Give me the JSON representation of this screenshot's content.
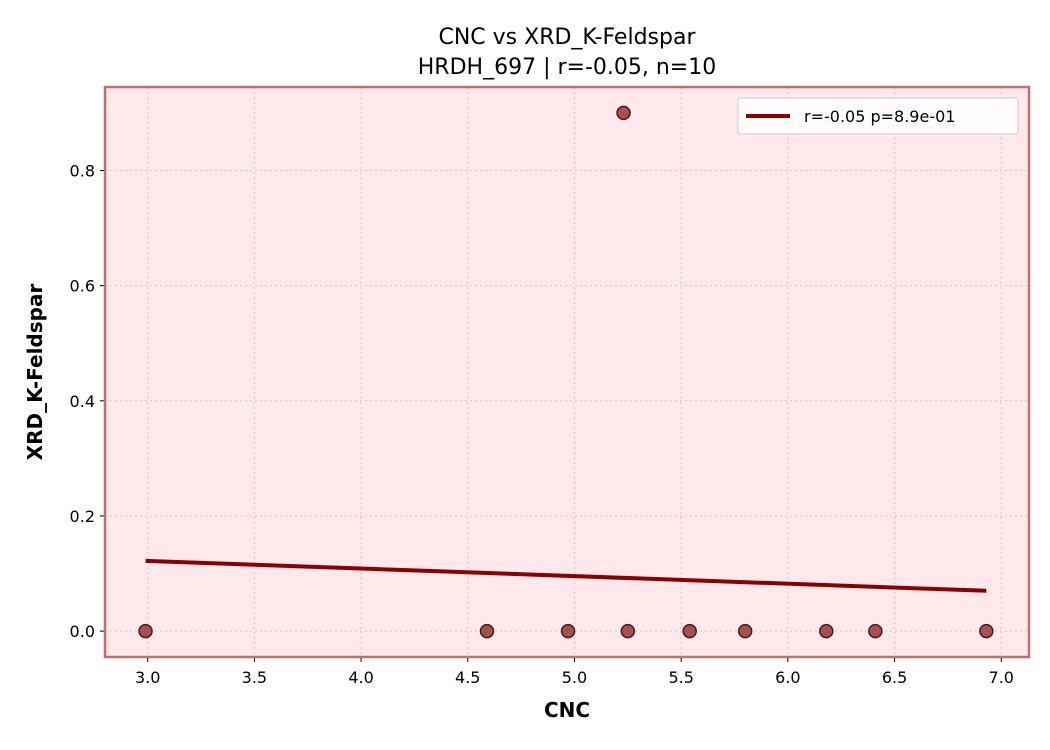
{
  "chart_data": {
    "type": "scatter",
    "title": "CNC vs XRD_K-Feldspar",
    "subtitle": "HRDH_697 | r=-0.05, n=10",
    "xlabel": "CNC",
    "ylabel": "XRD_K-Feldspar",
    "xlim": [
      2.8,
      7.13
    ],
    "ylim": [
      -0.045,
      0.945
    ],
    "x_ticks": [
      "3.0",
      "3.5",
      "4.0",
      "4.5",
      "5.0",
      "5.5",
      "6.0",
      "6.5",
      "7.0"
    ],
    "y_ticks": [
      "0.0",
      "0.2",
      "0.4",
      "0.6",
      "0.8"
    ],
    "grid": true,
    "legend_position": "top-right",
    "points": [
      {
        "x": 2.99,
        "y": 0.0
      },
      {
        "x": 4.59,
        "y": 0.0
      },
      {
        "x": 4.97,
        "y": 0.0
      },
      {
        "x": 5.23,
        "y": 0.9
      },
      {
        "x": 5.25,
        "y": 0.0
      },
      {
        "x": 5.54,
        "y": 0.0
      },
      {
        "x": 5.8,
        "y": 0.0
      },
      {
        "x": 6.18,
        "y": 0.0
      },
      {
        "x": 6.41,
        "y": 0.0
      },
      {
        "x": 6.93,
        "y": 0.0
      }
    ],
    "fit_line": {
      "label": "r=-0.05  p=8.9e-01",
      "x": [
        2.99,
        6.93
      ],
      "y": [
        0.122,
        0.07
      ]
    },
    "colors": {
      "plot_background": "#ffe9ec",
      "frame": "#c07070",
      "point_fill": "#a84646",
      "point_edge": "#3a2020",
      "fit_line": "#8b0000",
      "grid": "#d8c4c6"
    }
  }
}
